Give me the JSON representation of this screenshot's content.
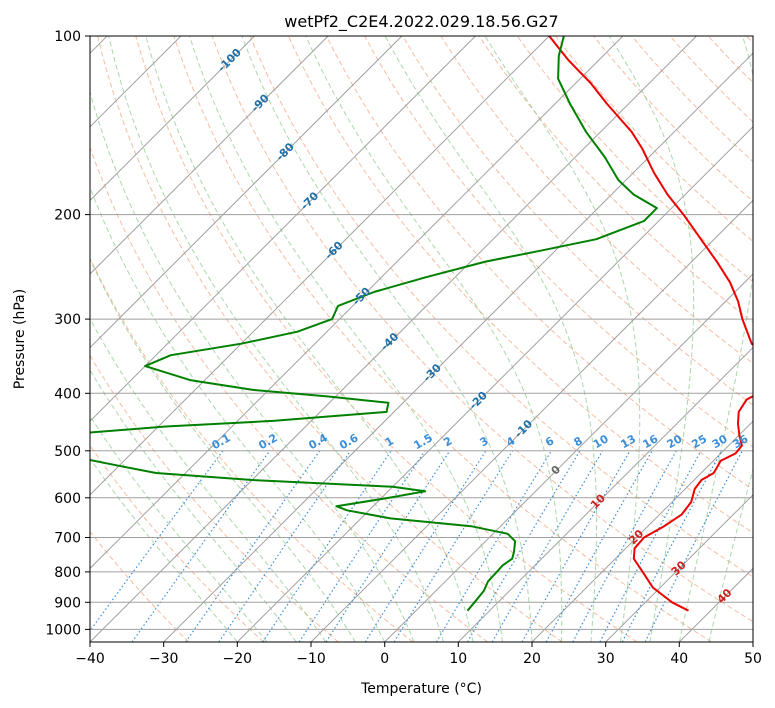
{
  "chart_data": {
    "type": "line",
    "subtype": "skew-t log-p diagram",
    "title": "wetPf2_C2E4.2022.029.18.56.G27",
    "xlabel": "Temperature (°C)",
    "ylabel": "Pressure (hPa)",
    "xlim": [
      -40,
      50
    ],
    "ylim": [
      1050,
      100
    ],
    "y_scale": "log",
    "grid": true,
    "x_ticks": [
      "−40",
      "−30",
      "−20",
      "−10",
      "0",
      "10",
      "20",
      "30",
      "40",
      "50"
    ],
    "x_tick_values": [
      -40,
      -30,
      -20,
      -10,
      0,
      10,
      20,
      30,
      40,
      50
    ],
    "y_ticks": [
      "100",
      "200",
      "300",
      "400",
      "500",
      "600",
      "700",
      "800",
      "900",
      "1000"
    ],
    "y_tick_values": [
      100,
      200,
      300,
      400,
      500,
      600,
      700,
      800,
      900,
      1000
    ],
    "colors": {
      "temperature": "#ee0000",
      "dewpoint": "#008000",
      "isotherm": "#a0a0a0",
      "isobar": "#a0a0a0",
      "dry_adiabat": "#f4a582",
      "moist_adiabat": "#8fc98f",
      "mixing_ratio": "#3b8ed8",
      "isotherm_label_cold": "#1f6fa8",
      "isotherm_label_warm": "#cc2222",
      "isotherm_label_zero": "#666666"
    },
    "isotherm_labels": [
      {
        "t": -100,
        "p": 110,
        "text": "-100"
      },
      {
        "t": -90,
        "p": 130,
        "text": "-90"
      },
      {
        "t": -80,
        "p": 157,
        "text": "-80"
      },
      {
        "t": -70,
        "p": 190,
        "text": "-70"
      },
      {
        "t": -60,
        "p": 230,
        "text": "-60"
      },
      {
        "t": -50,
        "p": 275,
        "text": "-50"
      },
      {
        "t": -40,
        "p": 328,
        "text": "-40"
      },
      {
        "t": -30,
        "p": 370,
        "text": "-30"
      },
      {
        "t": -20,
        "p": 412,
        "text": "-20"
      },
      {
        "t": -10,
        "p": 460,
        "text": "-10"
      },
      {
        "t": 0,
        "p": 540,
        "text": "0"
      },
      {
        "t": 10,
        "p": 610,
        "text": "10"
      },
      {
        "t": 20,
        "p": 700,
        "text": "20"
      },
      {
        "t": 30,
        "p": 790,
        "text": "30"
      },
      {
        "t": 40,
        "p": 880,
        "text": "40"
      }
    ],
    "mixing_ratio_labels": [
      "0.1",
      "0.2",
      "0.4",
      "0.6",
      "1",
      "1.5",
      "2",
      "3",
      "4",
      "6",
      "8",
      "10",
      "13",
      "16",
      "20",
      "25",
      "30",
      "36"
    ],
    "mixing_ratio_values": [
      0.1,
      0.2,
      0.4,
      0.6,
      1,
      1.5,
      2,
      3,
      4,
      6,
      8,
      10,
      13,
      16,
      20,
      25,
      30,
      36
    ],
    "series": [
      {
        "name": "",
        "role": "temperature",
        "points": [
          [
            930,
            37.0
          ],
          [
            900,
            33.6
          ],
          [
            850,
            29.0
          ],
          [
            800,
            25.5
          ],
          [
            760,
            22.5
          ],
          [
            730,
            21.2
          ],
          [
            700,
            21.0
          ],
          [
            670,
            22.2
          ],
          [
            640,
            23.0
          ],
          [
            610,
            22.6
          ],
          [
            580,
            21.3
          ],
          [
            560,
            21.0
          ],
          [
            545,
            21.7
          ],
          [
            530,
            21.3
          ],
          [
            520,
            21.0
          ],
          [
            505,
            22.0
          ],
          [
            490,
            21.8
          ],
          [
            470,
            20.0
          ],
          [
            450,
            18.3
          ],
          [
            430,
            16.8
          ],
          [
            410,
            16.2
          ],
          [
            395,
            17.3
          ],
          [
            380,
            18.4
          ],
          [
            360,
            15.6
          ],
          [
            330,
            9.3
          ],
          [
            300,
            4.7
          ],
          [
            280,
            1.7
          ],
          [
            260,
            -2.0
          ],
          [
            240,
            -6.6
          ],
          [
            220,
            -11.8
          ],
          [
            200,
            -17.5
          ],
          [
            185,
            -22.4
          ],
          [
            170,
            -27.2
          ],
          [
            155,
            -32.0
          ],
          [
            145,
            -35.8
          ],
          [
            130,
            -43.0
          ],
          [
            120,
            -48.0
          ],
          [
            110,
            -54.0
          ],
          [
            100,
            -60.0
          ]
        ]
      },
      {
        "name": "",
        "role": "dewpoint",
        "points": [
          [
            930,
            7.0
          ],
          [
            900,
            6.8
          ],
          [
            860,
            6.5
          ],
          [
            830,
            5.8
          ],
          [
            800,
            5.7
          ],
          [
            780,
            5.6
          ],
          [
            760,
            6.0
          ],
          [
            740,
            5.3
          ],
          [
            710,
            4.0
          ],
          [
            690,
            2.0
          ],
          [
            670,
            -4.0
          ],
          [
            650,
            -16.0
          ],
          [
            630,
            -23.0
          ],
          [
            620,
            -25.0
          ],
          [
            600,
            -19.0
          ],
          [
            585,
            -15.0
          ],
          [
            575,
            -20.0
          ],
          [
            560,
            -40.0
          ],
          [
            545,
            -54.0
          ],
          [
            530,
            -60.0
          ],
          [
            515,
            -66.0
          ],
          [
            490,
            -70.0
          ],
          [
            470,
            -72.0
          ],
          [
            455,
            -59.0
          ],
          [
            445,
            -45.0
          ],
          [
            430,
            -31.0
          ],
          [
            415,
            -32.0
          ],
          [
            405,
            -41.0
          ],
          [
            395,
            -52.0
          ],
          [
            380,
            -62.0
          ],
          [
            360,
            -70.0
          ],
          [
            345,
            -68.0
          ],
          [
            330,
            -60.0
          ],
          [
            315,
            -54.0
          ],
          [
            300,
            -51.0
          ],
          [
            285,
            -52.0
          ],
          [
            270,
            -49.0
          ],
          [
            255,
            -44.0
          ],
          [
            240,
            -38.0
          ],
          [
            230,
            -32.0
          ],
          [
            220,
            -26.0
          ],
          [
            205,
            -22.0
          ],
          [
            195,
            -22.0
          ],
          [
            185,
            -27.0
          ],
          [
            175,
            -31.0
          ],
          [
            160,
            -36.0
          ],
          [
            145,
            -42.0
          ],
          [
            130,
            -48.0
          ],
          [
            118,
            -53.0
          ],
          [
            108,
            -56.0
          ],
          [
            100,
            -58.0
          ]
        ]
      }
    ]
  }
}
